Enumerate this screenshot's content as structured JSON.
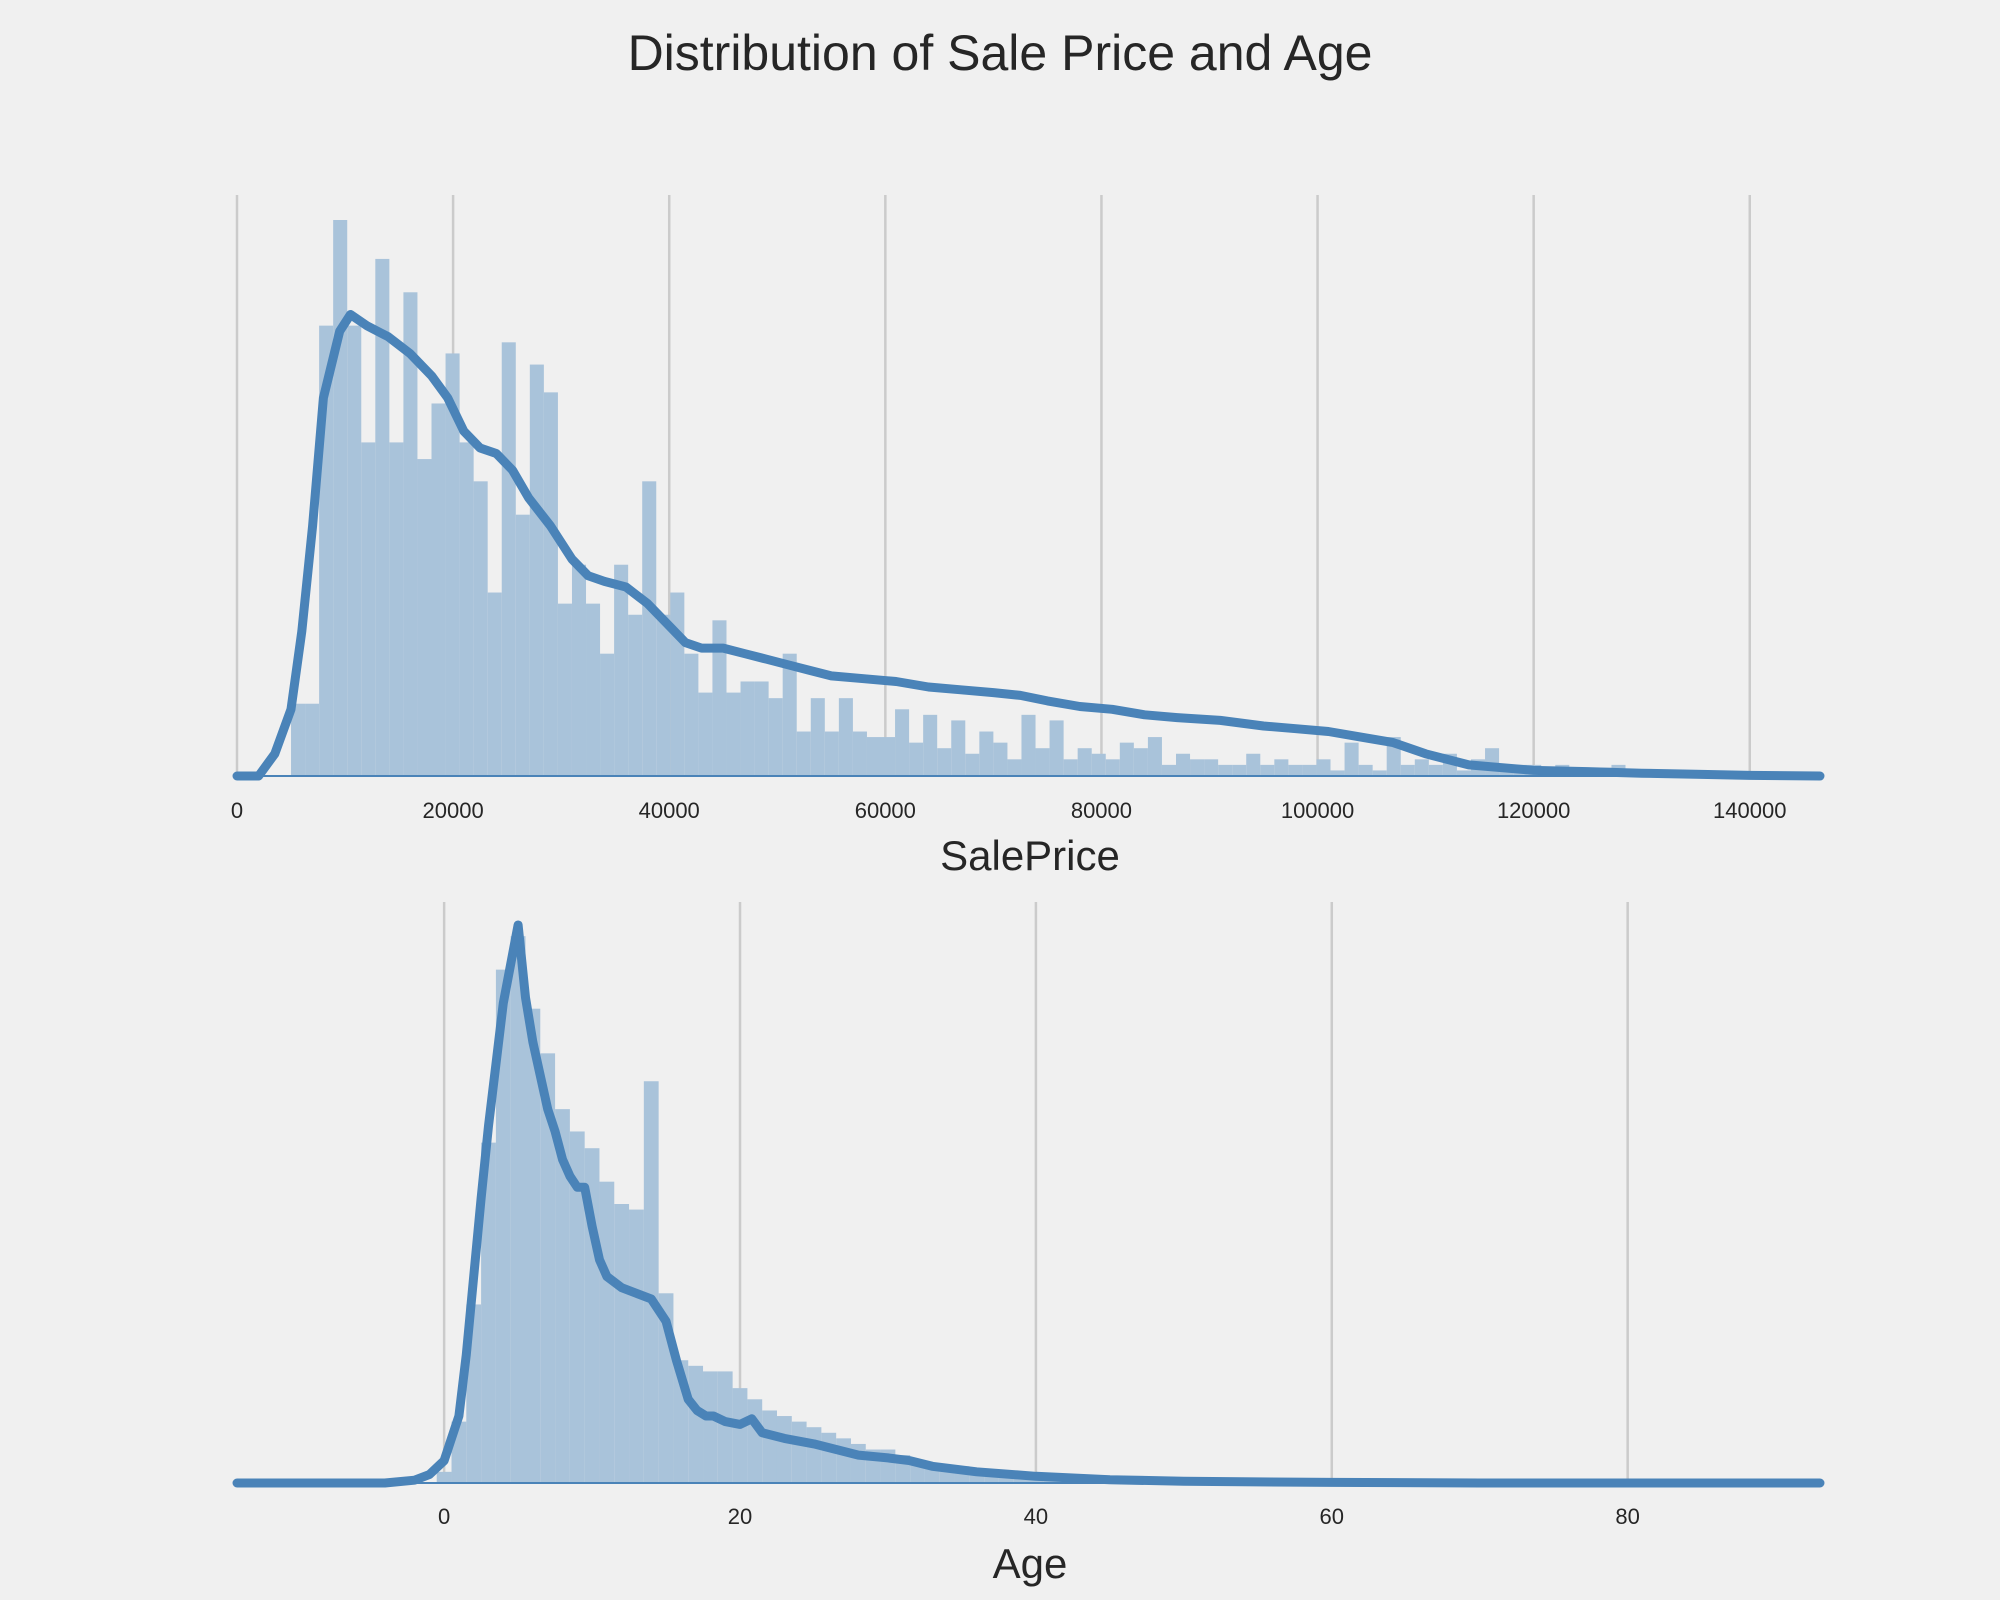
{
  "figure": {
    "title": "Distribution of Sale Price and Age"
  },
  "chart_data": [
    {
      "type": "histogram",
      "xlabel": "SalePrice",
      "xlim": [
        0,
        146500
      ],
      "ylim": [
        0,
        1.0
      ],
      "xticks": [
        0,
        20000,
        40000,
        60000,
        80000,
        100000,
        120000,
        140000
      ],
      "bin_start": 5000,
      "bin_width": 1300,
      "bin_heights": [
        0.13,
        0.13,
        0.81,
        1.0,
        0.81,
        0.6,
        0.93,
        0.6,
        0.87,
        0.57,
        0.67,
        0.76,
        0.6,
        0.53,
        0.33,
        0.78,
        0.47,
        0.74,
        0.69,
        0.31,
        0.38,
        0.31,
        0.22,
        0.38,
        0.29,
        0.53,
        0.29,
        0.33,
        0.22,
        0.15,
        0.28,
        0.15,
        0.17,
        0.17,
        0.14,
        0.22,
        0.08,
        0.14,
        0.08,
        0.14,
        0.08,
        0.07,
        0.07,
        0.12,
        0.06,
        0.11,
        0.05,
        0.1,
        0.04,
        0.08,
        0.06,
        0.03,
        0.11,
        0.05,
        0.1,
        0.03,
        0.05,
        0.04,
        0.03,
        0.06,
        0.05,
        0.07,
        0.02,
        0.04,
        0.03,
        0.03,
        0.02,
        0.02,
        0.04,
        0.02,
        0.03,
        0.02,
        0.02,
        0.03,
        0.01,
        0.06,
        0.02,
        0.01,
        0.07,
        0.02,
        0.03,
        0.02,
        0.04,
        0.01,
        0.03,
        0.05,
        0.02,
        0.02,
        0.02,
        0.015,
        0.02,
        0.01,
        0.01,
        0.015,
        0.02
      ],
      "kde": {
        "x": [
          0,
          2000,
          3500,
          5000,
          6000,
          7000,
          8000,
          9500,
          10500,
          12000,
          14000,
          16000,
          18000,
          19500,
          21000,
          22500,
          24000,
          25500,
          27000,
          29000,
          31000,
          32500,
          34000,
          36000,
          38000,
          40000,
          41500,
          43000,
          45000,
          47000,
          49000,
          51000,
          53000,
          55000,
          58000,
          61000,
          64000,
          67000,
          70000,
          72500,
          75000,
          78000,
          81000,
          84000,
          87000,
          91000,
          95000,
          98000,
          101000,
          104000,
          107000,
          110000,
          114000,
          120000,
          125000,
          130000,
          135000,
          140000,
          146500
        ],
        "y": [
          0.0,
          0.0,
          0.04,
          0.12,
          0.26,
          0.45,
          0.68,
          0.8,
          0.83,
          0.81,
          0.79,
          0.76,
          0.72,
          0.68,
          0.62,
          0.59,
          0.58,
          0.55,
          0.5,
          0.45,
          0.39,
          0.36,
          0.35,
          0.34,
          0.31,
          0.27,
          0.24,
          0.23,
          0.23,
          0.22,
          0.21,
          0.2,
          0.19,
          0.18,
          0.175,
          0.17,
          0.16,
          0.155,
          0.15,
          0.145,
          0.135,
          0.125,
          0.12,
          0.11,
          0.105,
          0.1,
          0.09,
          0.085,
          0.08,
          0.07,
          0.06,
          0.04,
          0.02,
          0.01,
          0.008,
          0.005,
          0.003,
          0.001,
          0.0
        ]
      }
    },
    {
      "type": "histogram",
      "xlabel": "Age",
      "xlim": [
        -14,
        93
      ],
      "ylim": [
        0,
        1.0
      ],
      "xticks": [
        0,
        20,
        40,
        60,
        80
      ],
      "bin_start": -0.5,
      "bin_width": 1,
      "bin_heights": [
        0.02,
        0.11,
        0.32,
        0.61,
        0.92,
        0.98,
        0.85,
        0.77,
        0.67,
        0.63,
        0.6,
        0.54,
        0.5,
        0.49,
        0.72,
        0.34,
        0.22,
        0.21,
        0.2,
        0.2,
        0.17,
        0.15,
        0.13,
        0.12,
        0.11,
        0.1,
        0.09,
        0.08,
        0.07,
        0.06,
        0.06,
        0.05,
        0.04,
        0.03,
        0.03,
        0.03,
        0.02,
        0.02,
        0.015,
        0.01,
        0.01,
        0.01,
        0.008,
        0.008,
        0.006,
        0.005,
        0.004,
        0.003,
        0.003,
        0.002
      ],
      "kde": {
        "x": [
          -14,
          -8,
          -4,
          -2,
          -1,
          0,
          1,
          1.5,
          2,
          2.5,
          3,
          4,
          5,
          5.5,
          6,
          6.5,
          7,
          7.5,
          8,
          8.5,
          9,
          9.5,
          10,
          10.5,
          11,
          12,
          13,
          14,
          15,
          15.7,
          16.5,
          17.1,
          17.7,
          18.2,
          19,
          20,
          20.8,
          21.5,
          23,
          25,
          26.5,
          28,
          30,
          31.5,
          33,
          36,
          40,
          45,
          50,
          60,
          70,
          80,
          93
        ],
        "y": [
          0.0,
          0.0,
          0.0,
          0.005,
          0.015,
          0.04,
          0.12,
          0.23,
          0.37,
          0.51,
          0.64,
          0.86,
          1.0,
          0.87,
          0.79,
          0.73,
          0.67,
          0.63,
          0.58,
          0.55,
          0.53,
          0.53,
          0.46,
          0.4,
          0.37,
          0.35,
          0.34,
          0.33,
          0.29,
          0.22,
          0.15,
          0.13,
          0.12,
          0.12,
          0.11,
          0.105,
          0.115,
          0.09,
          0.08,
          0.07,
          0.06,
          0.05,
          0.045,
          0.04,
          0.03,
          0.02,
          0.012,
          0.006,
          0.003,
          0.001,
          0.0,
          0.0,
          0.0
        ]
      }
    }
  ]
}
